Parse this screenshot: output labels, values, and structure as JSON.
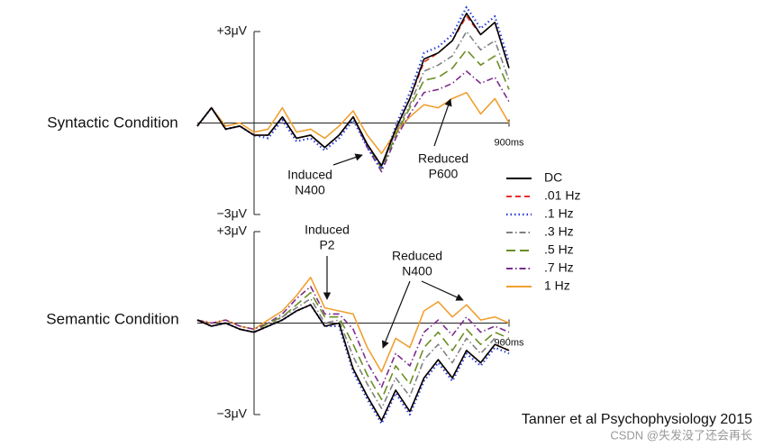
{
  "chart_data": [
    {
      "type": "line",
      "title": "Syntactic Condition",
      "x": [
        -200,
        -150,
        -100,
        -50,
        0,
        50,
        100,
        150,
        200,
        250,
        300,
        350,
        400,
        450,
        500,
        550,
        600,
        650,
        700,
        750,
        800,
        850,
        900
      ],
      "xlim": [
        -200,
        900
      ],
      "xticks": [
        {
          "value": 900,
          "label": "900ms"
        }
      ],
      "ylim": [
        -3,
        3
      ],
      "yticks": [
        {
          "value": 3,
          "label": "+3μV"
        },
        {
          "value": -3,
          "label": "−3μV"
        }
      ],
      "legend": "right",
      "annotations": [
        {
          "lines": [
            "Induced",
            "N400"
          ]
        },
        {
          "lines": [
            "Reduced",
            "P600"
          ]
        }
      ],
      "series": [
        {
          "name": "DC",
          "color": "#000000",
          "style": "solid",
          "values": [
            -0.1,
            0.5,
            -0.2,
            -0.1,
            -0.4,
            -0.4,
            0.2,
            -0.5,
            -0.4,
            -0.8,
            -0.4,
            0.2,
            -0.7,
            -1.4,
            -0.2,
            0.8,
            2.1,
            2.3,
            2.7,
            3.6,
            2.9,
            3.3,
            1.8
          ]
        },
        {
          "name": ".01 Hz",
          "color": "#e8302a",
          "style": "dashed",
          "values": [
            -0.1,
            0.5,
            -0.2,
            -0.1,
            -0.4,
            -0.4,
            0.2,
            -0.5,
            -0.4,
            -0.8,
            -0.4,
            0.2,
            -0.7,
            -1.4,
            -0.2,
            0.8,
            2.0,
            2.3,
            2.7,
            3.5,
            2.9,
            3.3,
            1.8
          ]
        },
        {
          "name": ".1 Hz",
          "color": "#2a3fd6",
          "style": "dotted",
          "values": [
            -0.1,
            0.5,
            -0.2,
            -0.1,
            -0.4,
            -0.5,
            0.1,
            -0.6,
            -0.5,
            -0.9,
            -0.5,
            0.1,
            -0.8,
            -1.5,
            -0.1,
            1.0,
            2.3,
            2.5,
            2.9,
            3.8,
            3.1,
            3.5,
            2.0
          ]
        },
        {
          "name": ".3 Hz",
          "color": "#808080",
          "style": "dashdot",
          "values": [
            -0.1,
            0.5,
            -0.2,
            -0.1,
            -0.4,
            -0.4,
            0.2,
            -0.5,
            -0.4,
            -0.8,
            -0.4,
            0.2,
            -0.7,
            -1.4,
            -0.3,
            0.6,
            1.7,
            1.9,
            2.2,
            3.0,
            2.4,
            2.7,
            1.4
          ]
        },
        {
          "name": ".5 Hz",
          "color": "#6b8e23",
          "style": "longdash",
          "values": [
            -0.1,
            0.5,
            -0.2,
            -0.1,
            -0.4,
            -0.4,
            0.2,
            -0.5,
            -0.4,
            -0.8,
            -0.4,
            0.2,
            -0.7,
            -1.5,
            -0.4,
            0.5,
            1.4,
            1.5,
            1.8,
            2.4,
            1.9,
            2.2,
            1.1
          ]
        },
        {
          "name": ".7 Hz",
          "color": "#7b2d8e",
          "style": "dashdot",
          "values": [
            -0.1,
            0.5,
            -0.2,
            -0.1,
            -0.4,
            -0.4,
            0.2,
            -0.5,
            -0.4,
            -0.8,
            -0.4,
            0.2,
            -0.8,
            -1.6,
            -0.5,
            0.3,
            1.0,
            1.1,
            1.3,
            1.7,
            1.3,
            1.5,
            0.7
          ]
        },
        {
          "name": "1 Hz",
          "color": "#f0a030",
          "style": "solid",
          "values": [
            -0.1,
            0.5,
            -0.1,
            0.0,
            -0.3,
            -0.2,
            0.5,
            -0.3,
            -0.2,
            -0.5,
            -0.1,
            0.4,
            -0.4,
            -1.0,
            -0.3,
            0.2,
            0.6,
            0.5,
            0.8,
            1.0,
            0.3,
            0.8,
            0.0
          ]
        }
      ]
    },
    {
      "type": "line",
      "title": "Semantic Condition",
      "x": [
        -200,
        -150,
        -100,
        -50,
        0,
        50,
        100,
        150,
        200,
        250,
        300,
        350,
        400,
        450,
        500,
        550,
        600,
        650,
        700,
        750,
        800,
        850,
        900
      ],
      "xlim": [
        -200,
        900
      ],
      "xticks": [
        {
          "value": 900,
          "label": "900ms"
        }
      ],
      "ylim": [
        -3,
        3
      ],
      "yticks": [
        {
          "value": 3,
          "label": "+3μV"
        },
        {
          "value": -3,
          "label": "−3μV"
        }
      ],
      "annotations": [
        {
          "lines": [
            "Induced",
            "P2"
          ]
        },
        {
          "lines": [
            "Reduced",
            "N400"
          ]
        }
      ],
      "series": [
        {
          "name": "DC",
          "color": "#000000",
          "style": "solid",
          "values": [
            0.1,
            -0.1,
            0,
            -0.2,
            -0.3,
            -0.1,
            0.1,
            0.4,
            0.6,
            -0.1,
            0,
            -1.5,
            -2.4,
            -3.2,
            -2.2,
            -2.9,
            -1.8,
            -1.2,
            -1.8,
            -0.9,
            -1.3,
            -0.7,
            -0.9
          ]
        },
        {
          "name": ".01 Hz",
          "color": "#e8302a",
          "style": "dashed",
          "values": [
            0.1,
            -0.1,
            0,
            -0.2,
            -0.3,
            -0.1,
            0.1,
            0.4,
            0.6,
            -0.1,
            0,
            -1.5,
            -2.4,
            -3.2,
            -2.2,
            -2.9,
            -1.8,
            -1.2,
            -1.8,
            -0.9,
            -1.3,
            -0.7,
            -0.9
          ]
        },
        {
          "name": ".1 Hz",
          "color": "#2a3fd6",
          "style": "dotted",
          "values": [
            0.1,
            -0.1,
            0,
            -0.2,
            -0.3,
            -0.1,
            0.1,
            0.4,
            0.6,
            -0.1,
            -0.1,
            -1.6,
            -2.5,
            -3.3,
            -2.3,
            -3.0,
            -1.9,
            -1.3,
            -1.9,
            -1.0,
            -1.4,
            -0.8,
            -1.0
          ]
        },
        {
          "name": ".3 Hz",
          "color": "#808080",
          "style": "dashdot",
          "values": [
            0.1,
            -0.1,
            0,
            -0.2,
            -0.3,
            -0.1,
            0.2,
            0.5,
            0.8,
            0,
            0.1,
            -1.1,
            -2.0,
            -2.8,
            -1.8,
            -2.4,
            -1.2,
            -0.7,
            -1.3,
            -0.5,
            -1.0,
            -0.5,
            -0.7
          ]
        },
        {
          "name": ".5 Hz",
          "color": "#6b8e23",
          "style": "longdash",
          "values": [
            0.1,
            -0.1,
            0,
            -0.2,
            -0.3,
            0,
            0.2,
            0.6,
            1.0,
            0.2,
            0.2,
            -0.7,
            -1.7,
            -2.5,
            -1.4,
            -2.0,
            -0.8,
            -0.3,
            -0.9,
            -0.2,
            -0.7,
            -0.3,
            -0.5
          ]
        },
        {
          "name": ".7 Hz",
          "color": "#7b2d8e",
          "style": "dashdot",
          "values": [
            0.1,
            0,
            0.1,
            -0.1,
            -0.2,
            0,
            0.3,
            0.8,
            1.2,
            0.3,
            0.3,
            -0.2,
            -1.3,
            -2.1,
            -1.0,
            -1.4,
            -0.3,
            0.1,
            -0.4,
            0.2,
            -0.3,
            -0.1,
            -0.3
          ]
        },
        {
          "name": "1 Hz",
          "color": "#f0a030",
          "style": "solid",
          "values": [
            0.1,
            0,
            0.1,
            -0.1,
            -0.2,
            0.1,
            0.4,
            0.9,
            1.5,
            0.5,
            0.4,
            0.3,
            -0.8,
            -1.6,
            -0.5,
            -0.8,
            0.4,
            0.7,
            0.2,
            0.6,
            0.1,
            0.2,
            0.0
          ]
        }
      ]
    }
  ],
  "citation": "Tanner et al Psychophysiology 2015",
  "watermark": "CSDN @失发没了还会再长"
}
